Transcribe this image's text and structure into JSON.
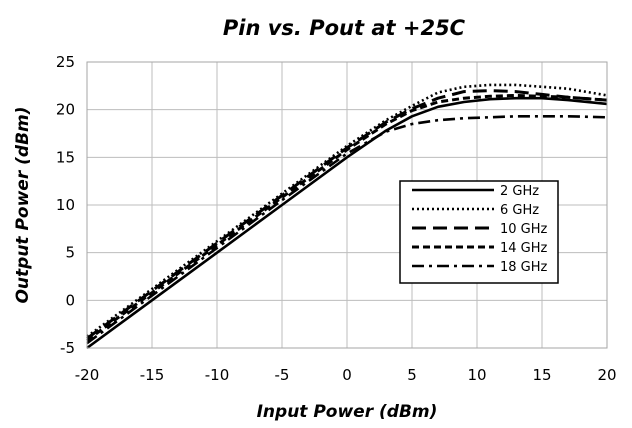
{
  "chart_data": {
    "type": "line",
    "title": "Pin vs. Pout at +25C",
    "xlabel": "Input Power (dBm)",
    "ylabel": "Output Power (dBm)",
    "xlim": [
      -20,
      20
    ],
    "ylim": [
      -5,
      25
    ],
    "xticks": [
      -20,
      -15,
      -10,
      -5,
      0,
      5,
      10,
      15,
      20
    ],
    "yticks": [
      -5,
      0,
      5,
      10,
      15,
      20,
      25
    ],
    "grid": true,
    "legend_position": "right",
    "series": [
      {
        "name": "2 GHz",
        "dash": "solid",
        "x": [
          -20,
          -15,
          -10,
          -5,
          0,
          3,
          5,
          7,
          9,
          11,
          13,
          15,
          17,
          20
        ],
        "y": [
          -5.0,
          0.0,
          5.0,
          10.0,
          15.0,
          17.8,
          19.3,
          20.3,
          20.8,
          21.1,
          21.2,
          21.2,
          21.0,
          20.6
        ]
      },
      {
        "name": "6 GHz",
        "dash": "dotted",
        "x": [
          -20,
          -15,
          -10,
          -5,
          0,
          3,
          5,
          7,
          9,
          11,
          13,
          15,
          17,
          20
        ],
        "y": [
          -3.8,
          1.2,
          6.2,
          11.2,
          16.2,
          18.9,
          20.4,
          21.8,
          22.4,
          22.6,
          22.6,
          22.4,
          22.2,
          21.5
        ]
      },
      {
        "name": "10 GHz",
        "dash": "long-dash",
        "x": [
          -20,
          -15,
          -10,
          -5,
          0,
          3,
          5,
          7,
          9,
          11,
          13,
          15,
          17,
          20
        ],
        "y": [
          -4.0,
          1.0,
          6.0,
          11.0,
          16.0,
          18.7,
          20.1,
          21.2,
          21.9,
          22.0,
          21.9,
          21.6,
          21.3,
          21.0
        ]
      },
      {
        "name": "14 GHz",
        "dash": "dashed",
        "x": [
          -20,
          -15,
          -10,
          -5,
          0,
          3,
          5,
          7,
          9,
          11,
          13,
          15,
          17,
          20
        ],
        "y": [
          -4.2,
          0.8,
          5.8,
          10.8,
          15.8,
          18.5,
          19.9,
          20.8,
          21.2,
          21.4,
          21.5,
          21.4,
          21.3,
          21.0
        ]
      },
      {
        "name": "18 GHz",
        "dash": "dash-dot",
        "x": [
          -20,
          -15,
          -10,
          -5,
          0,
          3,
          5,
          7,
          9,
          11,
          13,
          15,
          17,
          20
        ],
        "y": [
          -4.5,
          0.5,
          5.5,
          10.5,
          15.4,
          17.7,
          18.5,
          18.9,
          19.1,
          19.2,
          19.3,
          19.3,
          19.3,
          19.2
        ]
      }
    ]
  }
}
